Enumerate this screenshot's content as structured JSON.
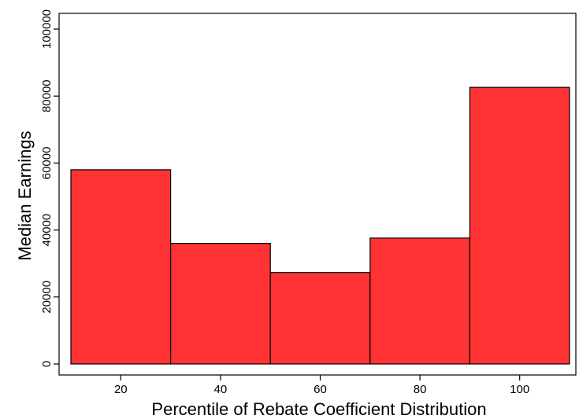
{
  "chart_data": {
    "type": "bar",
    "title": "",
    "xlabel": "Percentile of Rebate Coefficient Distribution",
    "ylabel": "Median Earnings",
    "bar_color": "#ff3333",
    "bar_edge_color": "#000000",
    "grid": false,
    "legend": "none",
    "xlim": [
      10,
      110
    ],
    "ylim": [
      0,
      100000
    ],
    "x_ticks": [
      20,
      40,
      60,
      80,
      100
    ],
    "y_ticks": [
      0,
      20000,
      40000,
      60000,
      80000,
      100000
    ],
    "bins": [
      {
        "x0": 10,
        "x1": 30,
        "value": 58000
      },
      {
        "x0": 30,
        "x1": 50,
        "value": 36000
      },
      {
        "x0": 50,
        "x1": 70,
        "value": 27300
      },
      {
        "x0": 70,
        "x1": 90,
        "value": 37600
      },
      {
        "x0": 90,
        "x1": 110,
        "value": 82600
      }
    ]
  }
}
